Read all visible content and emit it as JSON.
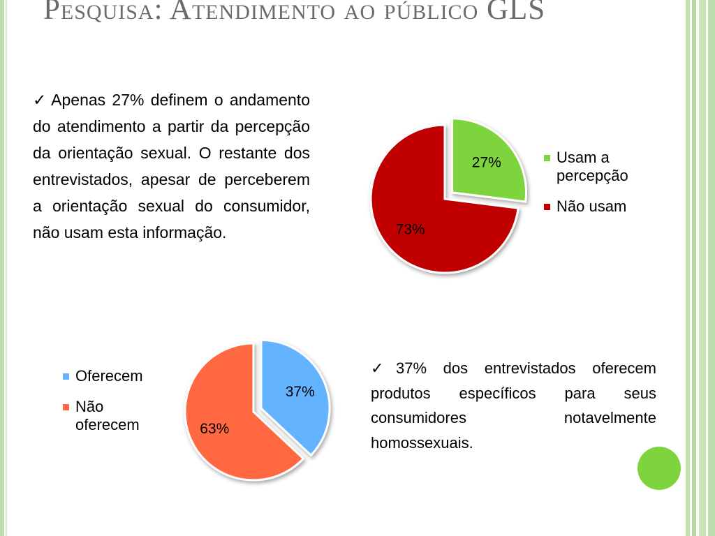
{
  "slide": {
    "title": "Pesquisa: Atendimento ao público GLS",
    "paragraph1": {
      "check": "✓",
      "text": "Apenas 27% definem o andamento do atendimento a partir da percepção da orientação sexual. O restante dos entrevistados, apesar de perceberem a orientação sexual do consumidor, não usam esta informação."
    },
    "paragraph2": {
      "check": "✓",
      "text": "37% dos entrevistados oferecem produtos específicos para seus consumidores notavelmente homossexuais."
    }
  },
  "colors": {
    "green": "#7ed43e",
    "dark_red": "#c00000",
    "blue": "#63b3ff",
    "orange": "#ff6840",
    "frame_green": "#bfdcae"
  },
  "chart_data": [
    {
      "type": "pie",
      "title": "",
      "categories": [
        "Usam a percepção",
        "Não usam"
      ],
      "values": [
        27,
        73
      ],
      "labels": [
        "27%",
        "73%"
      ],
      "exploded": "Usam a percepção",
      "legend": "right"
    },
    {
      "type": "pie",
      "title": "",
      "categories": [
        "Oferecem",
        "Não oferecem"
      ],
      "values": [
        37,
        63
      ],
      "labels": [
        "37%",
        "63%"
      ],
      "exploded": "Oferecem",
      "legend": "left"
    }
  ]
}
